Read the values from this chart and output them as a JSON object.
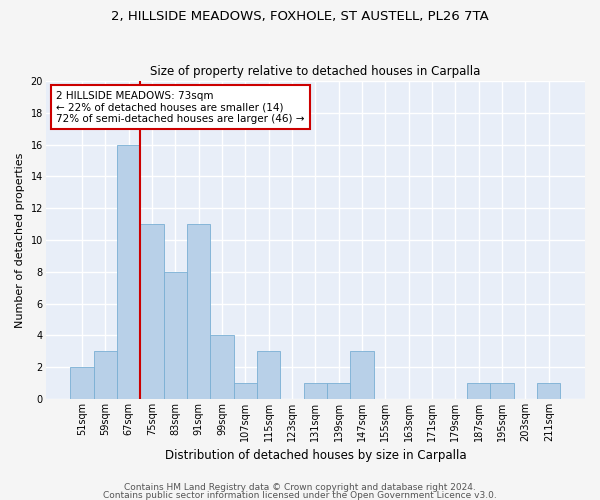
{
  "title1": "2, HILLSIDE MEADOWS, FOXHOLE, ST AUSTELL, PL26 7TA",
  "title2": "Size of property relative to detached houses in Carpalla",
  "xlabel": "Distribution of detached houses by size in Carpalla",
  "ylabel": "Number of detached properties",
  "categories": [
    "51sqm",
    "59sqm",
    "67sqm",
    "75sqm",
    "83sqm",
    "91sqm",
    "99sqm",
    "107sqm",
    "115sqm",
    "123sqm",
    "131sqm",
    "139sqm",
    "147sqm",
    "155sqm",
    "163sqm",
    "171sqm",
    "179sqm",
    "187sqm",
    "195sqm",
    "203sqm",
    "211sqm"
  ],
  "values": [
    2,
    3,
    16,
    11,
    8,
    11,
    4,
    1,
    3,
    0,
    1,
    1,
    3,
    0,
    0,
    0,
    0,
    1,
    1,
    0,
    1
  ],
  "bar_color": "#b8d0e8",
  "bar_edge_color": "#7aafd4",
  "vline_color": "#cc0000",
  "annotation_text": "2 HILLSIDE MEADOWS: 73sqm\n← 22% of detached houses are smaller (14)\n72% of semi-detached houses are larger (46) →",
  "annotation_box_color": "#ffffff",
  "annotation_box_edge_color": "#cc0000",
  "ylim": [
    0,
    20
  ],
  "yticks": [
    0,
    2,
    4,
    6,
    8,
    10,
    12,
    14,
    16,
    18,
    20
  ],
  "footer1": "Contains HM Land Registry data © Crown copyright and database right 2024.",
  "footer2": "Contains public sector information licensed under the Open Government Licence v3.0.",
  "bg_color": "#e8eef8",
  "grid_color": "#ffffff",
  "title1_fontsize": 9.5,
  "title2_fontsize": 8.5,
  "xlabel_fontsize": 8.5,
  "ylabel_fontsize": 8,
  "tick_fontsize": 7,
  "footer_fontsize": 6.5,
  "annotation_fontsize": 7.5
}
